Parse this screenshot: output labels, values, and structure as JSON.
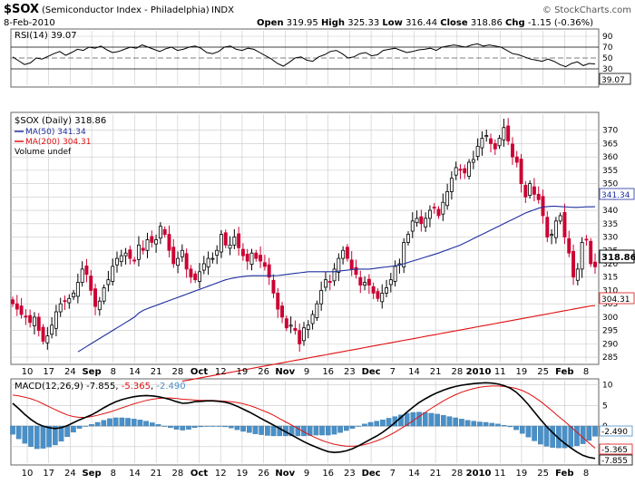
{
  "header": {
    "symbol": "$SOX",
    "name": "(Semiconductor Index - Philadelphia)",
    "exchange": "INDX",
    "date": "8-Feb-2010",
    "open_label": "Open",
    "open": "319.95",
    "high_label": "High",
    "high": "325.33",
    "low_label": "Low",
    "low": "316.44",
    "close_label": "Close",
    "close": "318.86",
    "chg_label": "Chg",
    "chg": "-1.15 (-0.36%)",
    "credit": "© StockCharts.com"
  },
  "colors": {
    "up_candle": "#000000",
    "down_candle": "#cc0033",
    "ma50": "#1f2fa0",
    "ma200": "#e01010",
    "macd_line": "#000000",
    "signal_line": "#e01010",
    "histogram": "#4a90c8",
    "grid": "#c8c8c8"
  },
  "chart_data": [
    {
      "type": "line",
      "panel": "rsi",
      "legend": "RSI(14) 39.07",
      "ylim": [
        0,
        100
      ],
      "yticks": [
        "90",
        "70",
        "50",
        "30"
      ],
      "last_value_label": "39.07",
      "series": [
        {
          "name": "RSI(14)",
          "values": [
            52,
            45,
            38,
            41,
            50,
            48,
            53,
            58,
            62,
            55,
            60,
            66,
            64,
            70,
            68,
            72,
            65,
            60,
            62,
            66,
            70,
            68,
            74,
            70,
            66,
            62,
            67,
            70,
            64,
            66,
            70,
            72,
            68,
            60,
            58,
            62,
            70,
            72,
            66,
            64,
            68,
            66,
            60,
            54,
            48,
            40,
            35,
            42,
            50,
            52,
            46,
            44,
            52,
            56,
            62,
            64,
            58,
            50,
            52,
            58,
            60,
            54,
            56,
            64,
            66,
            68,
            64,
            60,
            62,
            65,
            66,
            68,
            64,
            70,
            72,
            74,
            72,
            70,
            74,
            76,
            72,
            74,
            72,
            70,
            64,
            58,
            56,
            52,
            48,
            46,
            44,
            48,
            44,
            38,
            34,
            40,
            43,
            36,
            40,
            39.07
          ]
        }
      ]
    },
    {
      "type": "candlestick",
      "panel": "price",
      "legend_main": "$SOX (Daily) 318.86",
      "legend_ma50": "MA(50) 341.34",
      "legend_ma200": "MA(200) 304.31",
      "legend_volume": "Volume undef",
      "ylim": [
        283,
        376
      ],
      "yticks": [
        "370",
        "365",
        "360",
        "355",
        "350",
        "345",
        "340",
        "335",
        "330",
        "325",
        "320",
        "315",
        "310",
        "305",
        "300",
        "295",
        "290",
        "285"
      ],
      "badges": {
        "close": "318.86",
        "ma50": "341.34",
        "ma200": "304.31"
      },
      "close": [
        305,
        303,
        301,
        300,
        298,
        300,
        295,
        291,
        293,
        297,
        302,
        305,
        306,
        307,
        309,
        313,
        318,
        316,
        310,
        304,
        306,
        311,
        314,
        319,
        322,
        323,
        324,
        322,
        321,
        327,
        325,
        329,
        328,
        329,
        334,
        331,
        325,
        320,
        322,
        325,
        318,
        315,
        314,
        317,
        320,
        322,
        322,
        325,
        331,
        327,
        327,
        330,
        326,
        323,
        321,
        324,
        322,
        321,
        319,
        315,
        309,
        303,
        300,
        296,
        297,
        295,
        290,
        296,
        297,
        301,
        305,
        310,
        314,
        313,
        318,
        322,
        325,
        322,
        318,
        316,
        312,
        313,
        312,
        309,
        307,
        309,
        311,
        314,
        319,
        320,
        328,
        331,
        336,
        337,
        335,
        337,
        340,
        341,
        338,
        343,
        347,
        352,
        356,
        355,
        354,
        358,
        359,
        364,
        367,
        368,
        365,
        363,
        367,
        371,
        366,
        360,
        358,
        350,
        345,
        350,
        346,
        344,
        338,
        330,
        331,
        336,
        338,
        330,
        324,
        315,
        318,
        328,
        329,
        320,
        318.86
      ],
      "ma50": [
        287,
        288,
        289,
        290,
        291,
        292,
        293,
        294,
        295,
        296,
        297,
        298,
        299,
        300,
        301.5,
        302.5,
        303.2,
        303.8,
        304.4,
        305,
        305.6,
        306.2,
        306.8,
        307.4,
        308,
        308.6,
        309.2,
        309.8,
        310.4,
        311,
        311.6,
        312.2,
        312.8,
        313.4,
        314,
        314.4,
        314.7,
        315,
        315.2,
        315.4,
        315.5,
        315.5,
        315.5,
        315.5,
        315.5,
        315.5,
        315.6,
        315.8,
        316,
        316.2,
        316.4,
        316.6,
        316.8,
        317,
        317,
        317,
        317,
        317,
        317,
        317,
        317.2,
        317.4,
        317.6,
        317.8,
        318,
        318,
        318,
        318,
        318.2,
        318.4,
        318.6,
        318.8,
        319,
        319.2,
        319.5,
        320,
        320.5,
        321,
        321.5,
        322,
        322.5,
        323,
        323.5,
        324,
        324.6,
        325.2,
        325.8,
        326.4,
        327,
        327.8,
        328.6,
        329.4,
        330.2,
        331,
        331.8,
        332.6,
        333.4,
        334.2,
        335,
        335.8,
        336.6,
        337.4,
        338.2,
        339,
        339.6,
        340.2,
        340.8,
        341.2,
        341.4,
        341.5,
        341.5,
        341.4,
        341.3,
        341.2,
        341.1,
        341.1,
        341.2,
        341.3,
        341.3,
        341.34
      ],
      "ma200": [
        276,
        276.3,
        276.6,
        276.9,
        277.2,
        277.5,
        277.8,
        278.1,
        278.4,
        278.7,
        279,
        279.3,
        279.6,
        279.9,
        280.2,
        280.5,
        280.8,
        281.1,
        281.4,
        281.7,
        282,
        282.3,
        282.6,
        282.9,
        283.2,
        283.5,
        283.8,
        284.1,
        284.4,
        284.7,
        285,
        285.3,
        285.6,
        285.9,
        286.2,
        286.5,
        286.8,
        287.1,
        287.4,
        287.7,
        288,
        288.3,
        288.6,
        288.9,
        289.2,
        289.5,
        289.8,
        290.1,
        290.4,
        290.7,
        291,
        291.3,
        291.6,
        291.9,
        292.2,
        292.5,
        292.8,
        293.1,
        293.4,
        293.7,
        294,
        294.3,
        294.6,
        294.9,
        295.2,
        295.5,
        295.8,
        296.1,
        296.4,
        296.7,
        297,
        297.3,
        297.6,
        297.9,
        298.2,
        298.5,
        298.8,
        299.1,
        299.4,
        299.7,
        300,
        300.3,
        300.6,
        300.9,
        301.2,
        301.5,
        301.8,
        302.1,
        302.4,
        302.7,
        303,
        303.3,
        303.6,
        303.9,
        304.2,
        304.31
      ]
    },
    {
      "type": "line",
      "panel": "macd",
      "legend_prefix": "MACD(12,26,9)",
      "legend_macd": "-7.855",
      "legend_signal": "-5.365",
      "legend_hist": "-2.490",
      "ylim": [
        -9,
        11
      ],
      "yticks": [
        "10",
        "5",
        "0",
        "-5"
      ],
      "badges": {
        "hist": "-2.490",
        "signal": "-5.365",
        "macd": "-7.855"
      },
      "series": [
        {
          "name": "MACD",
          "values": [
            5.5,
            4.2,
            2.8,
            1.6,
            0.6,
            0,
            -0.4,
            -0.6,
            -0.4,
            0.1,
            0.8,
            1.5,
            2.1,
            2.7,
            3.5,
            4.4,
            5.2,
            5.9,
            6.4,
            6.8,
            7.1,
            7.3,
            7.4,
            7.3,
            7.1,
            6.8,
            6.4,
            5.9,
            5.5,
            5.6,
            5.9,
            6,
            6.1,
            6.1,
            6,
            5.8,
            5.4,
            4.8,
            4.1,
            3.4,
            2.6,
            1.8,
            1,
            0.2,
            -0.6,
            -1.4,
            -2.2,
            -3,
            -3.8,
            -4.5,
            -5.1,
            -5.7,
            -6.2,
            -6.4,
            -6.3,
            -6,
            -5.5,
            -4.8,
            -4,
            -3.2,
            -2.4,
            -1.5,
            -0.4,
            0.8,
            2.1,
            3.4,
            4.6,
            5.7,
            6.6,
            7.4,
            8.1,
            8.7,
            9.2,
            9.6,
            9.9,
            10.1,
            10.3,
            10.4,
            10.5,
            10.4,
            10.2,
            9.8,
            9.2,
            8.2,
            6.8,
            5.2,
            3.4,
            1.6,
            -0.1,
            -1.6,
            -3,
            -4.2,
            -5.3,
            -6.3,
            -7.1,
            -7.6,
            -7.855
          ]
        },
        {
          "name": "Signal",
          "values": [
            7.5,
            7.3,
            7,
            6.6,
            6.1,
            5.4,
            4.7,
            4,
            3.3,
            2.7,
            2.3,
            2.1,
            2.1,
            2.3,
            2.6,
            3,
            3.4,
            3.9,
            4.4,
            4.9,
            5.4,
            5.8,
            6.2,
            6.5,
            6.7,
            6.8,
            6.8,
            6.7,
            6.5,
            6.4,
            6.3,
            6.2,
            6.2,
            6.2,
            6.1,
            6,
            5.9,
            5.7,
            5.4,
            5,
            4.5,
            3.9,
            3.3,
            2.6,
            1.8,
            1,
            0.2,
            -0.6,
            -1.4,
            -2.2,
            -2.9,
            -3.5,
            -4,
            -4.4,
            -4.7,
            -4.9,
            -4.9,
            -4.8,
            -4.5,
            -4.1,
            -3.6,
            -3,
            -2.3,
            -1.5,
            -0.6,
            0.3,
            1.3,
            2.3,
            3.3,
            4.3,
            5.2,
            6.1,
            6.9,
            7.6,
            8.2,
            8.7,
            9.1,
            9.4,
            9.6,
            9.7,
            9.7,
            9.6,
            9.4,
            9.1,
            8.6,
            7.9,
            7,
            6,
            4.8,
            3.6,
            2.3,
            1.1,
            -0.2,
            -1.5,
            -2.8,
            -4.1,
            -5.365
          ]
        }
      ]
    }
  ],
  "x_axis": {
    "top_labels": [
      "10",
      "17",
      "24",
      "Sep",
      "8",
      "14",
      "21",
      "28",
      "Oct",
      "12",
      "19",
      "26",
      "Nov",
      "9",
      "16",
      "23",
      "Dec",
      "7",
      "14",
      "21",
      "28",
      "2010",
      "11",
      "19",
      "25",
      "Feb",
      "8"
    ],
    "bottom_labels": [
      "10",
      "17",
      "24",
      "Sep",
      "8",
      "14",
      "21",
      "28",
      "Oct",
      "12",
      "19",
      "26",
      "Nov",
      "9",
      "16",
      "23",
      "Dec",
      "7",
      "14",
      "21",
      "28",
      "2010",
      "11",
      "19",
      "25",
      "Feb",
      "8"
    ]
  }
}
